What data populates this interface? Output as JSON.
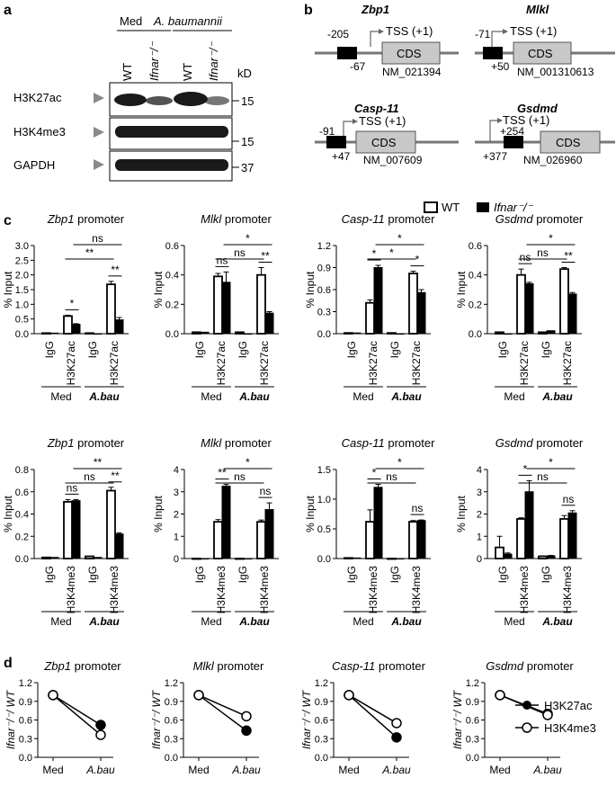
{
  "panel_labels": {
    "a": "a",
    "b": "b",
    "c": "c",
    "d": "d"
  },
  "panel_a": {
    "group_med": "Med",
    "group_ab": "A. baumannii",
    "lanes": [
      "WT",
      "Ifnar⁻/⁻",
      "WT",
      "Ifnar⁻/⁻"
    ],
    "kd_label": "kD",
    "blots": [
      {
        "name": "H3K27ac",
        "kd": "15"
      },
      {
        "name": "H3K4me3",
        "kd": "15"
      },
      {
        "name": "GAPDH",
        "kd": "37"
      }
    ]
  },
  "panel_b": {
    "genes": [
      {
        "name": "Zbp1",
        "start": "-205",
        "end": "-67",
        "tss": "TSS (+1)",
        "cds": "CDS",
        "accession": "NM_021394"
      },
      {
        "name": "Mlkl",
        "start": "-71",
        "end": "+50",
        "tss": "TSS (+1)",
        "cds": "CDS",
        "accession": "NM_001310613"
      },
      {
        "name": "Casp-11",
        "start": "-91",
        "end": "+47",
        "tss": "TSS (+1)",
        "cds": "CDS",
        "accession": "NM_007609"
      },
      {
        "name": "Gsdmd",
        "start": "+254",
        "end": "+377",
        "tss": "TSS (+1)",
        "cds": "CDS",
        "accession": "NM_026960"
      }
    ]
  },
  "legend": {
    "wt": "WT",
    "ko": "Ifnar⁻/⁻"
  },
  "chart_data": [
    {
      "type": "bar",
      "title": "Zbp1 promoter",
      "ylabel": "% Input",
      "ylim": [
        0,
        3.0
      ],
      "yticks": [
        0,
        0.5,
        1.0,
        1.5,
        2.0,
        2.5,
        3.0
      ],
      "categories": [
        "IgG",
        "H3K27ac",
        "IgG",
        "H3K27ac"
      ],
      "groups": [
        "Med",
        "A.bau"
      ],
      "series": [
        {
          "name": "WT",
          "values": [
            0.02,
            0.6,
            0.02,
            1.68
          ]
        },
        {
          "name": "Ifnar⁻/⁻",
          "values": [
            0.02,
            0.32,
            0.0,
            0.47
          ]
        }
      ],
      "errors": [
        [
          0,
          0.03,
          0,
          0.1
        ],
        [
          0,
          0.02,
          0,
          0.08
        ]
      ],
      "sig": [
        {
          "a": [
            1,
            0
          ],
          "b": [
            1,
            1
          ],
          "label": "*",
          "level": 0
        },
        {
          "a": [
            3,
            0
          ],
          "b": [
            3,
            1
          ],
          "label": "**",
          "level": 0
        },
        {
          "a": [
            1,
            0
          ],
          "b": [
            3,
            0
          ],
          "label": "**",
          "level": 1
        },
        {
          "a": [
            1,
            1
          ],
          "b": [
            3,
            1
          ],
          "label": "ns",
          "level": 2
        }
      ]
    },
    {
      "type": "bar",
      "title": "Mlkl promoter",
      "ylabel": "% Input",
      "ylim": [
        0,
        0.6
      ],
      "yticks": [
        0,
        0.2,
        0.4,
        0.6
      ],
      "categories": [
        "IgG",
        "H3K27ac",
        "IgG",
        "H3K27ac"
      ],
      "groups": [
        "Med",
        "A.bau"
      ],
      "series": [
        {
          "name": "WT",
          "values": [
            0.01,
            0.39,
            0.01,
            0.4
          ]
        },
        {
          "name": "Ifnar⁻/⁻",
          "values": [
            0.01,
            0.35,
            0.0,
            0.14
          ]
        }
      ],
      "errors": [
        [
          0,
          0.02,
          0,
          0.05
        ],
        [
          0,
          0.07,
          0,
          0.01
        ]
      ],
      "sig": [
        {
          "a": [
            1,
            0
          ],
          "b": [
            1,
            1
          ],
          "label": "ns",
          "level": 0
        },
        {
          "a": [
            3,
            0
          ],
          "b": [
            3,
            1
          ],
          "label": "**",
          "level": 0
        },
        {
          "a": [
            1,
            0
          ],
          "b": [
            3,
            0
          ],
          "label": "ns",
          "level": 1
        },
        {
          "a": [
            1,
            1
          ],
          "b": [
            3,
            1
          ],
          "label": "*",
          "level": 2
        }
      ]
    },
    {
      "type": "bar",
      "title": "Casp-11 promoter",
      "ylabel": "% Input",
      "ylim": [
        0,
        1.2
      ],
      "yticks": [
        0,
        0.3,
        0.6,
        0.9,
        1.2
      ],
      "categories": [
        "IgG",
        "H3K27ac",
        "IgG",
        "H3K27ac"
      ],
      "groups": [
        "Med",
        "A.bau"
      ],
      "series": [
        {
          "name": "WT",
          "values": [
            0.01,
            0.42,
            0.01,
            0.82
          ]
        },
        {
          "name": "Ifnar⁻/⁻",
          "values": [
            0.01,
            0.9,
            0.0,
            0.56
          ]
        }
      ],
      "errors": [
        [
          0,
          0.04,
          0,
          0.03
        ],
        [
          0,
          0.03,
          0,
          0.04
        ]
      ],
      "sig": [
        {
          "a": [
            1,
            0
          ],
          "b": [
            1,
            1
          ],
          "label": "*",
          "level": 0
        },
        {
          "a": [
            3,
            0
          ],
          "b": [
            3,
            1
          ],
          "label": "*",
          "level": 0
        },
        {
          "a": [
            1,
            0
          ],
          "b": [
            3,
            0
          ],
          "label": "*",
          "level": 1
        },
        {
          "a": [
            1,
            1
          ],
          "b": [
            3,
            1
          ],
          "label": "*",
          "level": 2
        }
      ]
    },
    {
      "type": "bar",
      "title": "Gsdmd promoter",
      "ylabel": "% Input",
      "ylim": [
        0,
        0.6
      ],
      "yticks": [
        0,
        0.2,
        0.4,
        0.6
      ],
      "categories": [
        "IgG",
        "H3K27ac",
        "IgG",
        "H3K27ac"
      ],
      "groups": [
        "Med",
        "A.bau"
      ],
      "series": [
        {
          "name": "WT",
          "values": [
            0.01,
            0.4,
            0.01,
            0.44
          ]
        },
        {
          "name": "Ifnar⁻/⁻",
          "values": [
            0.0,
            0.34,
            0.02,
            0.27
          ]
        }
      ],
      "errors": [
        [
          0,
          0.04,
          0,
          0.01
        ],
        [
          0,
          0.01,
          0,
          0.01
        ]
      ],
      "sig": [
        {
          "a": [
            1,
            0
          ],
          "b": [
            1,
            1
          ],
          "label": "ns",
          "level": 0
        },
        {
          "a": [
            3,
            0
          ],
          "b": [
            3,
            1
          ],
          "label": "**",
          "level": 0
        },
        {
          "a": [
            1,
            0
          ],
          "b": [
            3,
            0
          ],
          "label": "ns",
          "level": 1
        },
        {
          "a": [
            1,
            1
          ],
          "b": [
            3,
            1
          ],
          "label": "*",
          "level": 2
        }
      ]
    },
    {
      "type": "bar",
      "title": "Zbp1 promoter",
      "ylabel": "% Input",
      "ylim": [
        0,
        0.8
      ],
      "yticks": [
        0,
        0.2,
        0.4,
        0.6,
        0.8
      ],
      "categories": [
        "IgG",
        "H3K4me3",
        "IgG",
        "H3K4me3"
      ],
      "groups": [
        "Med",
        "A.bau"
      ],
      "series": [
        {
          "name": "WT",
          "values": [
            0.01,
            0.51,
            0.02,
            0.61
          ]
        },
        {
          "name": "Ifnar⁻/⁻",
          "values": [
            0.01,
            0.52,
            0.01,
            0.22
          ]
        }
      ],
      "errors": [
        [
          0,
          0.02,
          0,
          0.03
        ],
        [
          0,
          0.01,
          0,
          0.01
        ]
      ],
      "sig": [
        {
          "a": [
            1,
            0
          ],
          "b": [
            1,
            1
          ],
          "label": "ns",
          "level": 0
        },
        {
          "a": [
            3,
            0
          ],
          "b": [
            3,
            1
          ],
          "label": "**",
          "level": 0
        },
        {
          "a": [
            1,
            0
          ],
          "b": [
            3,
            0
          ],
          "label": "ns",
          "level": 1
        },
        {
          "a": [
            1,
            1
          ],
          "b": [
            3,
            1
          ],
          "label": "**",
          "level": 2
        }
      ]
    },
    {
      "type": "bar",
      "title": "Mlkl promoter",
      "ylabel": "% Input",
      "ylim": [
        0,
        4
      ],
      "yticks": [
        0,
        1,
        2,
        3,
        4
      ],
      "categories": [
        "IgG",
        "H3K4me3",
        "IgG",
        "H3K4me3"
      ],
      "groups": [
        "Med",
        "A.bau"
      ],
      "series": [
        {
          "name": "WT",
          "values": [
            0.0,
            1.65,
            0.0,
            1.65
          ]
        },
        {
          "name": "Ifnar⁻/⁻",
          "values": [
            0.0,
            3.25,
            0.0,
            2.2
          ]
        }
      ],
      "errors": [
        [
          0,
          0.1,
          0,
          0.08
        ],
        [
          0,
          0.08,
          0,
          0.3
        ]
      ],
      "sig": [
        {
          "a": [
            1,
            0
          ],
          "b": [
            1,
            1
          ],
          "label": "**",
          "level": 0
        },
        {
          "a": [
            3,
            0
          ],
          "b": [
            3,
            1
          ],
          "label": "ns",
          "level": 0
        },
        {
          "a": [
            1,
            0
          ],
          "b": [
            3,
            0
          ],
          "label": "ns",
          "level": 1
        },
        {
          "a": [
            1,
            1
          ],
          "b": [
            3,
            1
          ],
          "label": "*",
          "level": 2
        }
      ]
    },
    {
      "type": "bar",
      "title": "Casp-11 promoter",
      "ylabel": "% Input",
      "ylim": [
        0,
        1.5
      ],
      "yticks": [
        0,
        0.5,
        1.0,
        1.5
      ],
      "categories": [
        "IgG",
        "H3K4me3",
        "IgG",
        "H3K4me3"
      ],
      "groups": [
        "Med",
        "A.bau"
      ],
      "series": [
        {
          "name": "WT",
          "values": [
            0.01,
            0.62,
            0.0,
            0.62
          ]
        },
        {
          "name": "Ifnar⁻/⁻",
          "values": [
            0.01,
            1.2,
            0.0,
            0.64
          ]
        }
      ],
      "errors": [
        [
          0,
          0.2,
          0,
          0.02
        ],
        [
          0,
          0.05,
          0,
          0.01
        ]
      ],
      "sig": [
        {
          "a": [
            1,
            0
          ],
          "b": [
            1,
            1
          ],
          "label": "*",
          "level": 0
        },
        {
          "a": [
            3,
            0
          ],
          "b": [
            3,
            1
          ],
          "label": "ns",
          "level": 0
        },
        {
          "a": [
            1,
            0
          ],
          "b": [
            3,
            0
          ],
          "label": "ns",
          "level": 1
        },
        {
          "a": [
            1,
            1
          ],
          "b": [
            3,
            1
          ],
          "label": "*",
          "level": 2
        }
      ]
    },
    {
      "type": "bar",
      "title": "Gsdmd promoter",
      "ylabel": "% Input",
      "ylim": [
        0,
        4
      ],
      "yticks": [
        0,
        1,
        2,
        3,
        4
      ],
      "categories": [
        "IgG",
        "H3K4me3",
        "IgG",
        "H3K4me3"
      ],
      "groups": [
        "Med",
        "A.bau"
      ],
      "series": [
        {
          "name": "WT",
          "values": [
            0.5,
            1.78,
            0.1,
            1.78
          ]
        },
        {
          "name": "Ifnar⁻/⁻",
          "values": [
            0.2,
            3.0,
            0.12,
            2.05
          ]
        }
      ],
      "errors": [
        [
          0.5,
          0.05,
          0.02,
          0.15
        ],
        [
          0.05,
          0.5,
          0.02,
          0.1
        ]
      ],
      "sig": [
        {
          "a": [
            1,
            0
          ],
          "b": [
            1,
            1
          ],
          "label": "*",
          "level": 0
        },
        {
          "a": [
            3,
            0
          ],
          "b": [
            3,
            1
          ],
          "label": "ns",
          "level": 0
        },
        {
          "a": [
            1,
            0
          ],
          "b": [
            3,
            0
          ],
          "label": "ns",
          "level": 1
        },
        {
          "a": [
            1,
            1
          ],
          "b": [
            3,
            1
          ],
          "label": "*",
          "level": 2
        }
      ]
    },
    {
      "type": "line",
      "title": "Zbp1 promoter",
      "ylabel": "Ifnar⁻/⁻/ WT",
      "ylim": [
        0,
        1.2
      ],
      "yticks": [
        0,
        0.3,
        0.6,
        0.9,
        1.2
      ],
      "categories": [
        "Med",
        "A.bau"
      ],
      "series": [
        {
          "name": "H3K27ac",
          "values": [
            1.0,
            0.52
          ]
        },
        {
          "name": "H3K4me3",
          "values": [
            1.0,
            0.36
          ]
        }
      ]
    },
    {
      "type": "line",
      "title": "Mlkl promoter",
      "ylabel": "Ifnar⁻/⁻/ WT",
      "ylim": [
        0,
        1.2
      ],
      "yticks": [
        0,
        0.3,
        0.6,
        0.9,
        1.2
      ],
      "categories": [
        "Med",
        "A.bau"
      ],
      "series": [
        {
          "name": "H3K27ac",
          "values": [
            1.0,
            0.43
          ]
        },
        {
          "name": "H3K4me3",
          "values": [
            1.0,
            0.66
          ]
        }
      ]
    },
    {
      "type": "line",
      "title": "Casp-11 promoter",
      "ylabel": "Ifnar⁻/⁻/ WT",
      "ylim": [
        0,
        1.2
      ],
      "yticks": [
        0,
        0.3,
        0.6,
        0.9,
        1.2
      ],
      "categories": [
        "Med",
        "A.bau"
      ],
      "series": [
        {
          "name": "H3K27ac",
          "values": [
            1.0,
            0.32
          ]
        },
        {
          "name": "H3K4me3",
          "values": [
            1.0,
            0.55
          ]
        }
      ]
    },
    {
      "type": "line",
      "title": "Gsdmd promoter",
      "ylabel": "Ifnar⁻/⁻/ WT",
      "ylim": [
        0,
        1.2
      ],
      "yticks": [
        0,
        0.3,
        0.6,
        0.9,
        1.2
      ],
      "categories": [
        "Med",
        "A.bau"
      ],
      "series": [
        {
          "name": "H3K27ac",
          "values": [
            1.0,
            0.7
          ]
        },
        {
          "name": "H3K4me3",
          "values": [
            1.0,
            0.68
          ]
        }
      ]
    }
  ]
}
